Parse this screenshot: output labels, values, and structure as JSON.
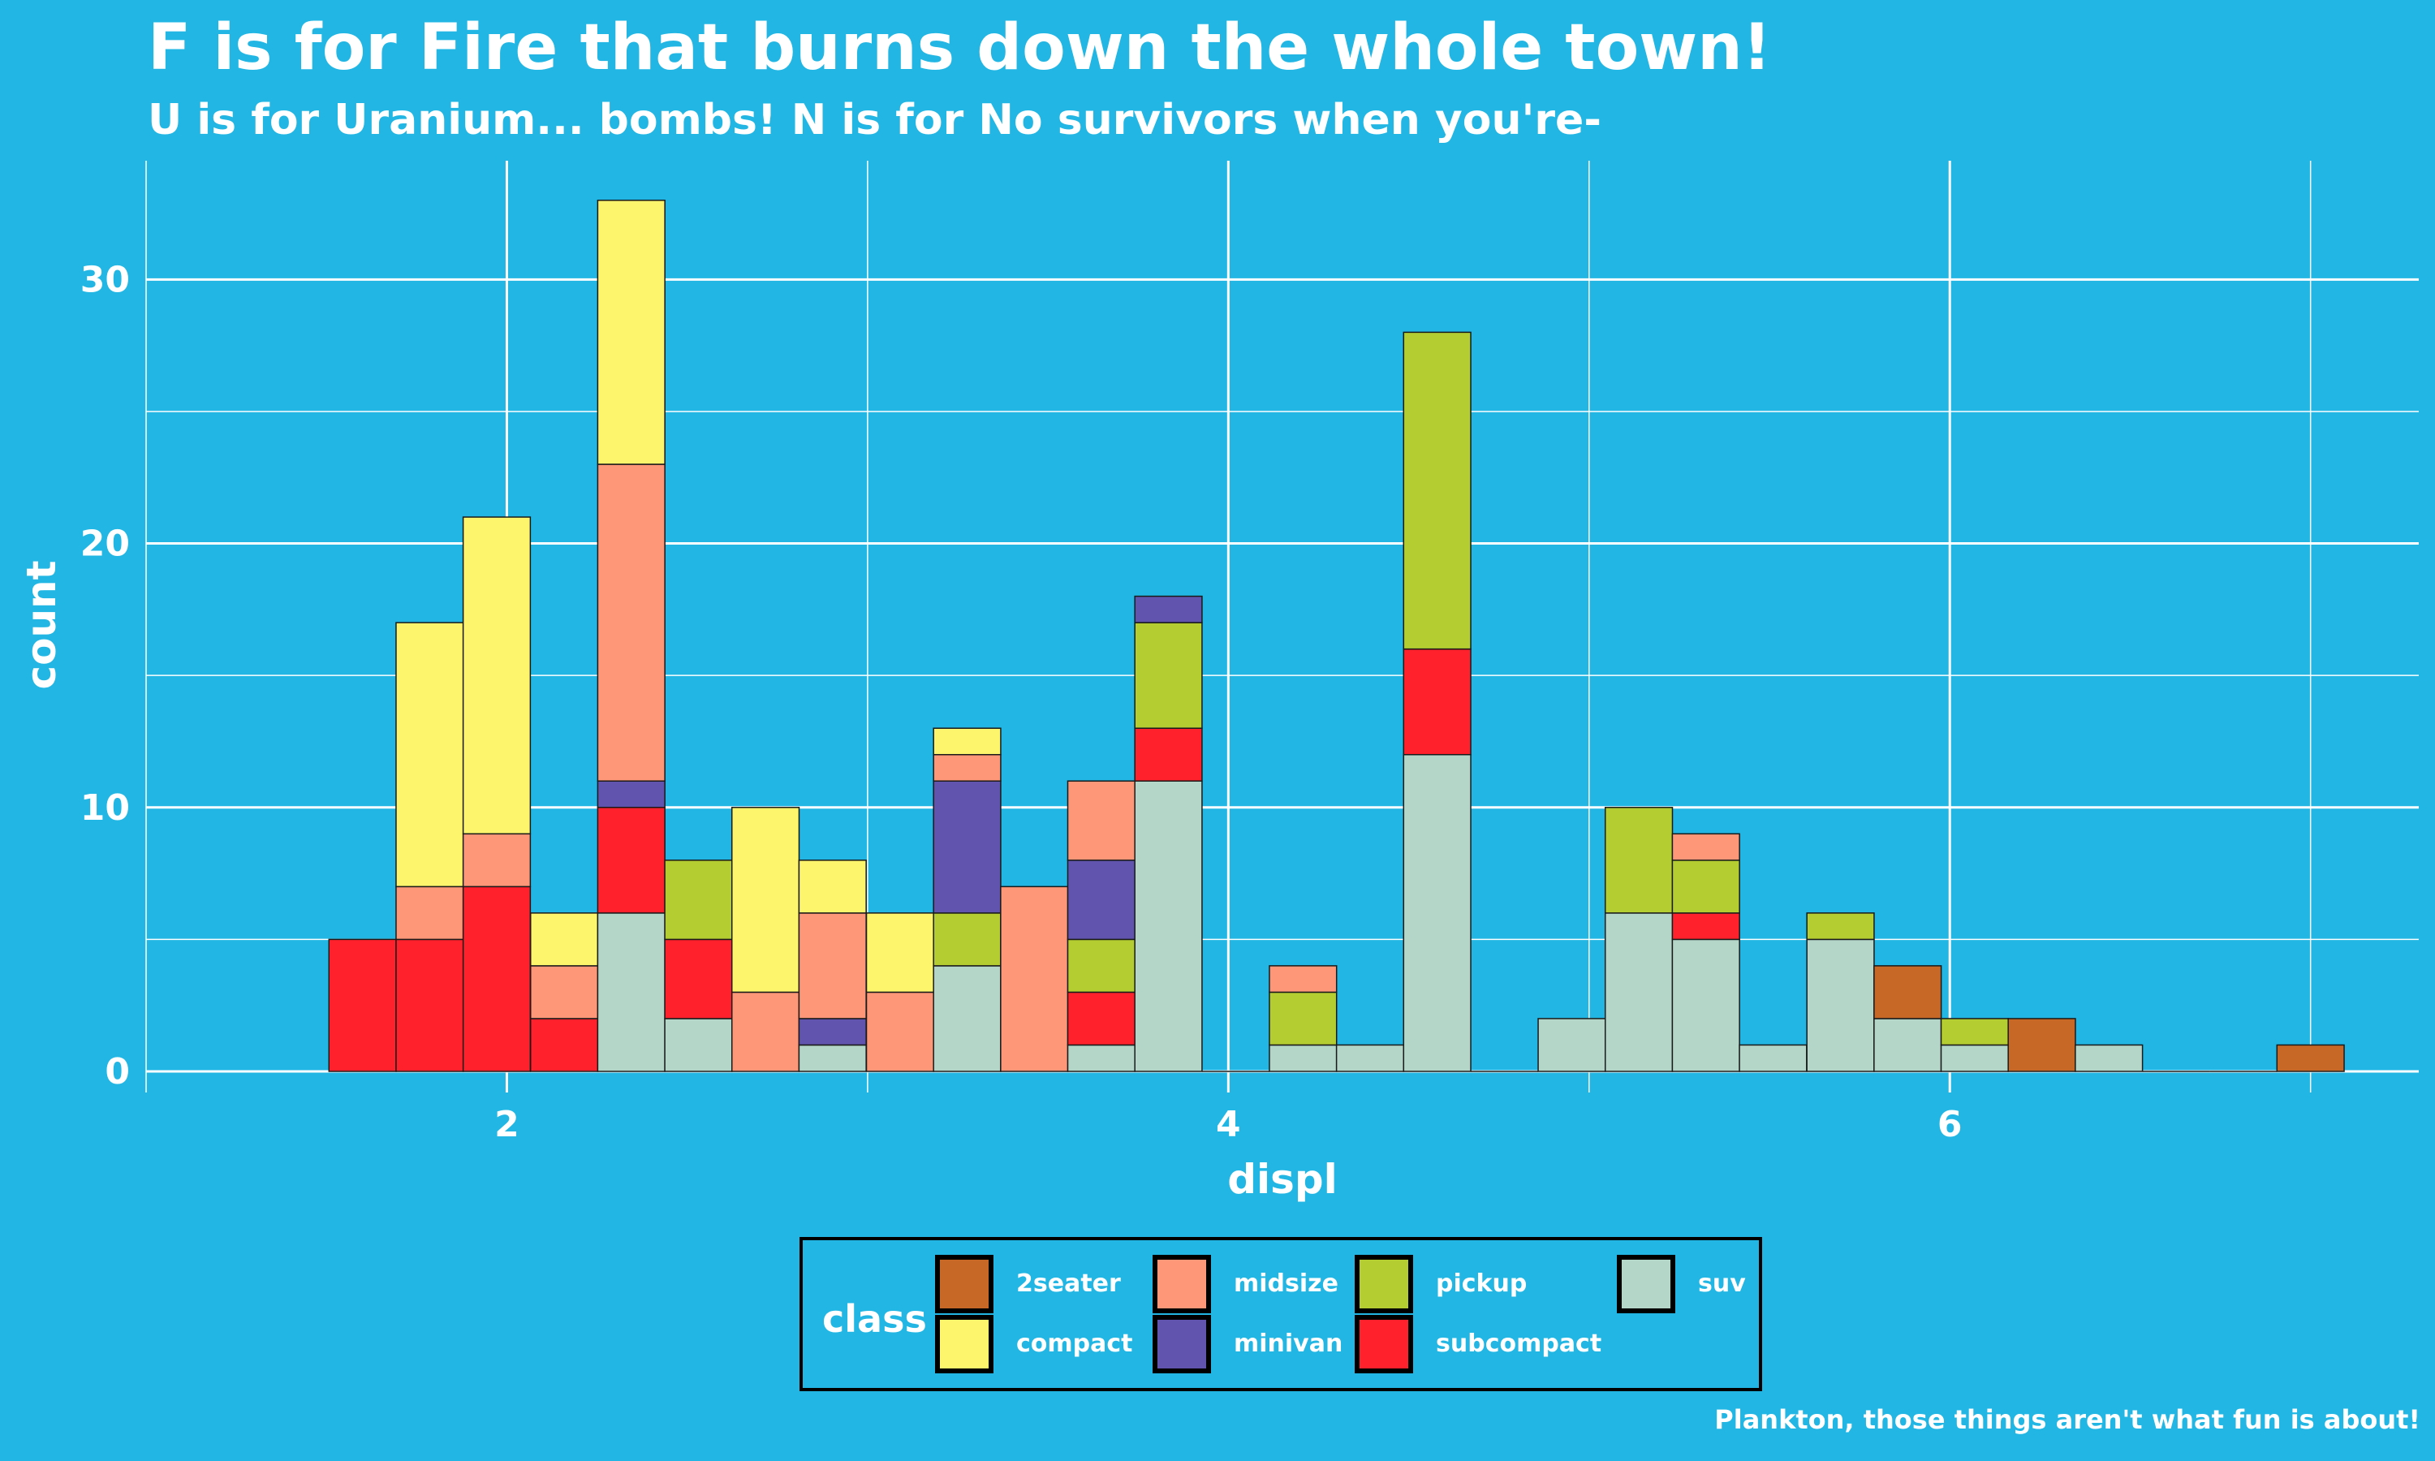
{
  "chart_data": {
    "type": "bar",
    "stacked": true,
    "title": "F is for Fire that burns down the whole town!",
    "subtitle": "U is for Uranium... bombs! N is for No survivors when you're-",
    "caption": "Plankton, those things aren't what fun is about!",
    "xlabel": "displ",
    "ylabel": "count",
    "xlim": [
      1.0,
      7.3
    ],
    "ylim": [
      -0.8,
      34.5
    ],
    "xticks": [
      2,
      4,
      6
    ],
    "yticks": [
      0,
      10,
      20,
      30
    ],
    "bin_width": 0.1862,
    "bin_centers": [
      1.6,
      1.786,
      1.972,
      2.159,
      2.345,
      2.531,
      2.717,
      2.903,
      3.09,
      3.276,
      3.462,
      3.648,
      3.834,
      4.021,
      4.207,
      4.393,
      4.579,
      4.766,
      4.952,
      5.138,
      5.324,
      5.51,
      5.697,
      5.883,
      6.069,
      6.255,
      6.441,
      6.628,
      6.814,
      7.0
    ],
    "legend_title": "class",
    "legend_position": "bottom",
    "series": [
      {
        "name": "2seater",
        "color": "#c76826",
        "values": [
          0,
          0,
          0,
          0,
          0,
          0,
          0,
          0,
          0,
          0,
          0,
          0,
          0,
          0,
          0,
          0,
          0,
          0,
          0,
          0,
          0,
          0,
          0,
          2,
          0,
          2,
          0,
          0,
          0,
          1
        ]
      },
      {
        "name": "compact",
        "color": "#fdf66d",
        "values": [
          0,
          10,
          12,
          2,
          10,
          0,
          7,
          2,
          3,
          1,
          0,
          0,
          0,
          0,
          0,
          0,
          0,
          0,
          0,
          0,
          0,
          0,
          0,
          0,
          0,
          0,
          0,
          0,
          0,
          0
        ]
      },
      {
        "name": "midsize",
        "color": "#fe9778",
        "values": [
          0,
          2,
          2,
          2,
          12,
          0,
          3,
          4,
          3,
          1,
          7,
          3,
          0,
          0,
          1,
          0,
          0,
          0,
          0,
          0,
          1,
          0,
          0,
          0,
          0,
          0,
          0,
          0,
          0,
          0
        ]
      },
      {
        "name": "minivan",
        "color": "#6054ae",
        "values": [
          0,
          0,
          0,
          0,
          1,
          0,
          0,
          1,
          0,
          5,
          0,
          3,
          1,
          0,
          0,
          0,
          0,
          0,
          0,
          0,
          0,
          0,
          0,
          0,
          0,
          0,
          0,
          0,
          0,
          0
        ]
      },
      {
        "name": "pickup",
        "color": "#b4ce31",
        "values": [
          0,
          0,
          0,
          0,
          0,
          3,
          0,
          0,
          0,
          2,
          0,
          2,
          4,
          0,
          2,
          0,
          12,
          0,
          0,
          4,
          2,
          0,
          1,
          0,
          1,
          0,
          0,
          0,
          0,
          0
        ]
      },
      {
        "name": "subcompact",
        "color": "#ff212b",
        "values": [
          5,
          5,
          7,
          2,
          4,
          3,
          0,
          0,
          0,
          0,
          0,
          2,
          2,
          0,
          0,
          0,
          4,
          0,
          0,
          0,
          1,
          0,
          0,
          0,
          0,
          0,
          0,
          0,
          0,
          0
        ]
      },
      {
        "name": "suv",
        "color": "#b3d6c9",
        "values": [
          0,
          0,
          0,
          0,
          6,
          2,
          0,
          1,
          0,
          4,
          0,
          1,
          11,
          0,
          1,
          1,
          12,
          0,
          2,
          6,
          5,
          1,
          5,
          2,
          1,
          0,
          1,
          0,
          0,
          0
        ]
      }
    ]
  }
}
